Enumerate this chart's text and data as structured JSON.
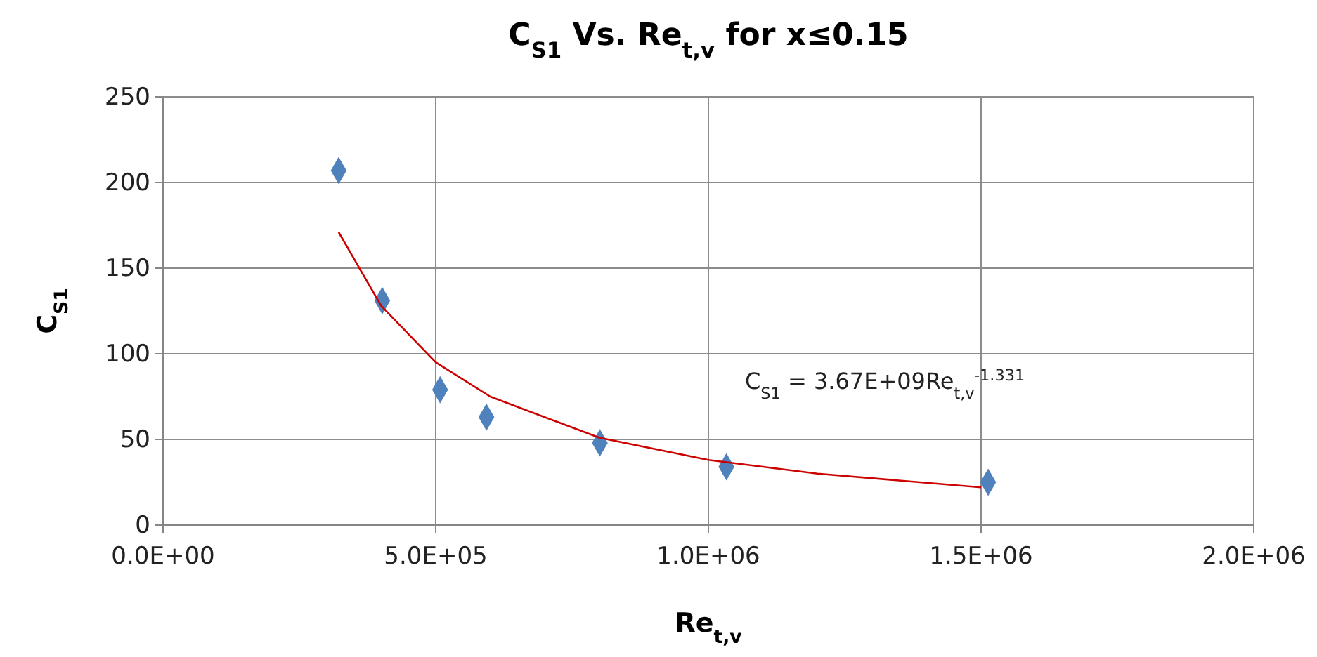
{
  "chart_data": {
    "type": "scatter",
    "title": "C$_{S1}$  Vs. Re$_{t,v}$  for x≤0.15",
    "xlabel": "Re$_{t,v}$",
    "ylabel": "C$_{S1}$",
    "annotations": [
      "C$_{S1}$ = 3.67E+09Re$_{t,v}$$^{-1.331}$"
    ],
    "xlim": [
      0,
      2000000
    ],
    "ylim": [
      0,
      250
    ],
    "xticks": [
      {
        "value": 0,
        "label": "0.0E+00"
      },
      {
        "value": 500000,
        "label": "5.0E+05"
      },
      {
        "value": 1000000,
        "label": "1.0E+06"
      },
      {
        "value": 1500000,
        "label": "1.5E+06"
      },
      {
        "value": 2000000,
        "label": "2.0E+06"
      }
    ],
    "yticks": [
      0,
      50,
      100,
      150,
      200,
      250
    ],
    "grid": true,
    "series": [
      {
        "type": "scatter",
        "color": "#4f81bd",
        "marker": "diamond",
        "x": [
          322000,
          402000,
          508000,
          593000,
          801000,
          1033000,
          1513000
        ],
        "values": [
          207,
          131,
          79,
          63,
          48,
          34,
          25
        ]
      },
      {
        "type": "line",
        "color": "#cc0000",
        "marker": "none",
        "line_style": "solid",
        "x": [
          322000,
          400000,
          500000,
          600000,
          800000,
          1000000,
          1200000,
          1500000
        ],
        "values": [
          171,
          128,
          95,
          75,
          51,
          38,
          30,
          22
        ]
      }
    ]
  }
}
